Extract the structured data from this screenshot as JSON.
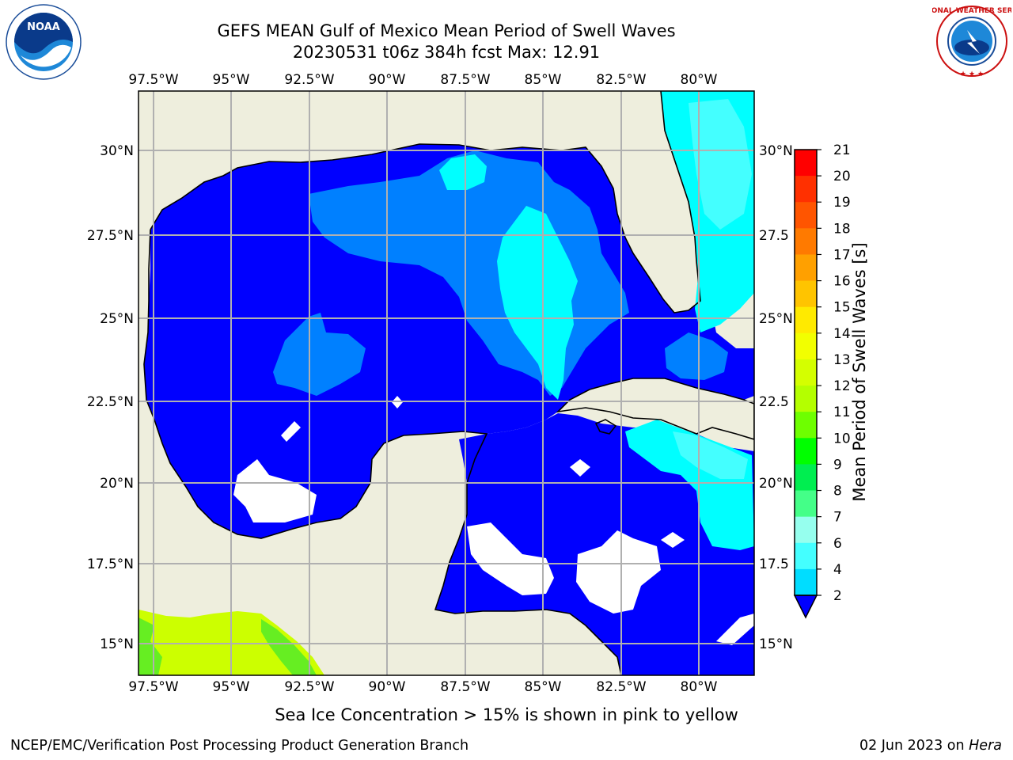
{
  "header": {
    "title": "GEFS MEAN Gulf of Mexico Mean Period of Swell Waves",
    "subtitle": "20230531 t06z 384h fcst   Max: 12.91"
  },
  "logos": {
    "left": "NOAA",
    "right": "NATIONAL WEATHER SERVICE"
  },
  "map": {
    "lon_labels": [
      "97.5°W",
      "95°W",
      "92.5°W",
      "90°W",
      "87.5°W",
      "85°W",
      "82.5°W",
      "80°W"
    ],
    "lat_labels_left": [
      "30°N",
      "27.5°N",
      "25°N",
      "22.5°N",
      "20°N",
      "17.5°N",
      "15°N"
    ],
    "lat_labels_right": [
      "30°N",
      "27.5",
      "25°N",
      "22.5",
      "20°N",
      "17.5",
      "15°N"
    ],
    "colors": {
      "land": "#eeeedd",
      "ocean_low": "#0000ff",
      "ocean_mid": "#0080ff",
      "ocean_high": "#00ffff",
      "grid": "#b0b0b0"
    }
  },
  "colorbar": {
    "label": "Mean Period of Swell Waves [s]",
    "ticks": [
      "21",
      "20",
      "19",
      "18",
      "17",
      "16",
      "15",
      "14",
      "13",
      "12",
      "11",
      "10",
      "9",
      "8",
      "7",
      "6",
      "4",
      "2"
    ],
    "colors": [
      "#ff0000",
      "#ff3000",
      "#ff5500",
      "#ff7a00",
      "#ffa000",
      "#ffc400",
      "#ffea00",
      "#f2ff00",
      "#d4ff00",
      "#b4ff00",
      "#6eff00",
      "#00ff00",
      "#00ee50",
      "#44ff88",
      "#96ffee",
      "#44ffff",
      "#00ddff",
      "#0080ff",
      "#0000ff"
    ]
  },
  "footer": {
    "notice": "Sea Ice Concentration > 15% is shown in pink to yellow",
    "left": "NCEP/EMC/Verification Post Processing Product Generation Branch",
    "right_date": "02 Jun 2023 on ",
    "right_machine": "Hera"
  }
}
